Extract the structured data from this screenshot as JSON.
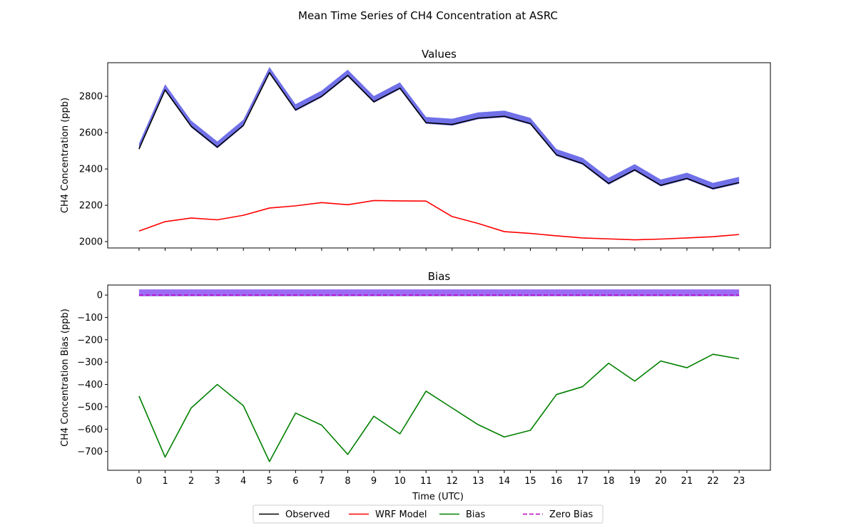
{
  "figure": {
    "suptitle": "Mean Time Series of CH4 Concentration at ASRC",
    "xlabel": "Time (UTC)",
    "legend": [
      {
        "label": "Observed",
        "color": "#000000",
        "style": "solid"
      },
      {
        "label": "WRF Model",
        "color": "#ff0000",
        "style": "solid"
      },
      {
        "label": "Bias",
        "color": "#008000",
        "style": "solid"
      },
      {
        "label": "Zero Bias",
        "color": "#bf00bf",
        "style": "dashed"
      }
    ],
    "legend_placement": "bottom-center"
  },
  "chart_data": [
    {
      "type": "line",
      "title": "Values",
      "xlabel": "",
      "ylabel": "CH4 Concentration (ppb)",
      "x": [
        0,
        1,
        2,
        3,
        4,
        5,
        6,
        7,
        8,
        9,
        10,
        11,
        12,
        13,
        14,
        15,
        16,
        17,
        18,
        19,
        20,
        21,
        22,
        23
      ],
      "xlim": [
        -1.2,
        24.2
      ],
      "ylim": [
        1965,
        2985
      ],
      "yticks": [
        2000,
        2200,
        2400,
        2600,
        2800
      ],
      "xticks_labeled": false,
      "grid": false,
      "series": [
        {
          "name": "Observed",
          "color": "#000000",
          "band": {
            "color": "#4040e0",
            "half_width": 8
          },
          "values": [
            2510,
            2835,
            2635,
            2520,
            2640,
            2930,
            2725,
            2800,
            2915,
            2770,
            2845,
            2655,
            2645,
            2680,
            2690,
            2650,
            2478,
            2430,
            2320,
            2395,
            2310,
            2348,
            2292,
            2325
          ]
        },
        {
          "name": "WRF Model",
          "color": "#ff0000",
          "values": [
            2058,
            2110,
            2130,
            2120,
            2145,
            2185,
            2197,
            2215,
            2203,
            2226,
            2224,
            2223,
            2138,
            2100,
            2055,
            2045,
            2032,
            2020,
            2015,
            2010,
            2014,
            2020,
            2027,
            2039
          ]
        }
      ]
    },
    {
      "type": "line",
      "title": "Bias",
      "xlabel": "Time (UTC)",
      "ylabel": "CH4 Concentration Bias (ppb)",
      "x": [
        0,
        1,
        2,
        3,
        4,
        5,
        6,
        7,
        8,
        9,
        10,
        11,
        12,
        13,
        14,
        15,
        16,
        17,
        18,
        19,
        20,
        21,
        22,
        23
      ],
      "xlim": [
        -1.2,
        24.2
      ],
      "ylim": [
        -784,
        45
      ],
      "yticks": [
        0,
        -100,
        -200,
        -300,
        -400,
        -500,
        -600,
        -700
      ],
      "xticks": [
        "0",
        "1",
        "2",
        "3",
        "4",
        "5",
        "6",
        "7",
        "8",
        "9",
        "10",
        "11",
        "12",
        "13",
        "14",
        "15",
        "16",
        "17",
        "18",
        "19",
        "20",
        "21",
        "22",
        "23"
      ],
      "grid": false,
      "series": [
        {
          "name": "Bias",
          "color": "#008000",
          "values": [
            -452,
            -725,
            -505,
            -400,
            -495,
            -745,
            -528,
            -582,
            -713,
            -542,
            -621,
            -430,
            -505,
            -580,
            -635,
            -605,
            -445,
            -410,
            -305,
            -385,
            -295,
            -325,
            -265,
            -285
          ]
        },
        {
          "name": "Zero Bias",
          "color": "#bf00bf",
          "dashed": true,
          "band": {
            "color": "#7b3bf0",
            "half_width": 8
          },
          "values": [
            0,
            0,
            0,
            0,
            0,
            0,
            0,
            0,
            0,
            0,
            0,
            0,
            0,
            0,
            0,
            0,
            0,
            0,
            0,
            0,
            0,
            0,
            0,
            0
          ]
        }
      ]
    }
  ]
}
